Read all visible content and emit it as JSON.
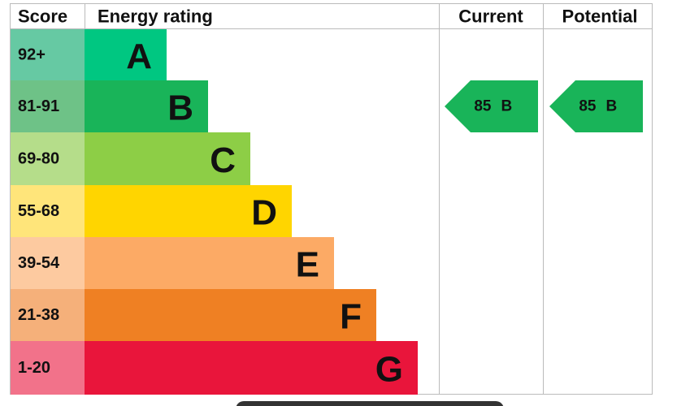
{
  "header": {
    "score": "Score",
    "energy_rating": "Energy rating",
    "current": "Current",
    "potential": "Potential"
  },
  "bands": [
    {
      "score": "92+",
      "letter": "A"
    },
    {
      "score": "81-91",
      "letter": "B"
    },
    {
      "score": "69-80",
      "letter": "C"
    },
    {
      "score": "55-68",
      "letter": "D"
    },
    {
      "score": "39-54",
      "letter": "E"
    },
    {
      "score": "21-38",
      "letter": "F"
    },
    {
      "score": "1-20",
      "letter": "G"
    }
  ],
  "current": {
    "score": "85",
    "letter": "B"
  },
  "potential": {
    "score": "85",
    "letter": "B"
  }
}
